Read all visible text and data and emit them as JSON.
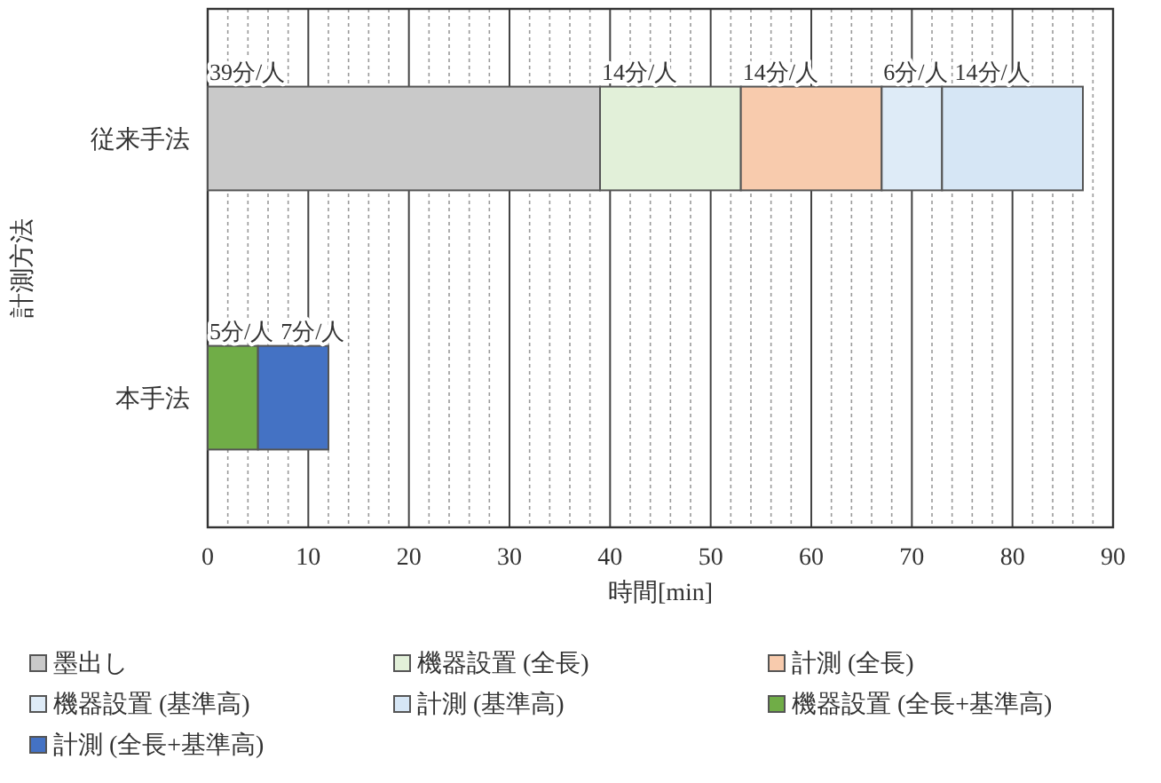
{
  "chart_data": {
    "type": "bar",
    "orientation": "horizontal",
    "stacked": true,
    "categories": [
      "従来手法",
      "本手法"
    ],
    "series": [
      {
        "name": "墨出し",
        "color": "#c9c9c9",
        "values": [
          39,
          null
        ],
        "value_labels": [
          "39分/人",
          null
        ]
      },
      {
        "name": "機器設置 (全長)",
        "color": "#e2f0d9",
        "values": [
          14,
          null
        ],
        "value_labels": [
          "14分/人",
          null
        ]
      },
      {
        "name": "計測 (全長)",
        "color": "#f8cbad",
        "values": [
          14,
          null
        ],
        "value_labels": [
          "14分/人",
          null
        ]
      },
      {
        "name": "機器設置 (基準高)",
        "color": "#deebf7",
        "values": [
          6,
          null
        ],
        "value_labels": [
          "6分/人",
          null
        ]
      },
      {
        "name": "計測 (基準高)",
        "color": "#d6e6f5",
        "values": [
          14,
          null
        ],
        "value_labels": [
          "14分/人",
          null
        ]
      },
      {
        "name": "機器設置 (全長+基準高)",
        "color": "#70ad47",
        "values": [
          null,
          5
        ],
        "value_labels": [
          null,
          "5分/人"
        ]
      },
      {
        "name": "計測 (全長+基準高)",
        "color": "#4472c4",
        "values": [
          null,
          7
        ],
        "value_labels": [
          null,
          "7分/人"
        ]
      }
    ],
    "xlabel": "時間[min]",
    "ylabel": "計測方法",
    "xlim": [
      0,
      90
    ],
    "xticks": [
      0,
      {
        "value": 2,
        "label": null
      },
      {
        "value": 4,
        "label": null
      },
      {
        "value": 6,
        "label": null
      },
      {
        "value": 8,
        "label": null
      },
      10,
      {
        "value": 12,
        "label": null
      },
      {
        "value": 14,
        "label": null
      },
      {
        "value": 16,
        "label": null
      },
      {
        "value": 18,
        "label": null
      },
      20,
      {
        "value": 22,
        "label": null
      },
      {
        "value": 24,
        "label": null
      },
      {
        "value": 26,
        "label": null
      },
      {
        "value": 28,
        "label": null
      },
      30,
      {
        "value": 32,
        "label": null
      },
      {
        "value": 34,
        "label": null
      },
      {
        "value": 36,
        "label": null
      },
      {
        "value": 38,
        "label": null
      },
      40,
      {
        "value": 42,
        "label": null
      },
      {
        "value": 44,
        "label": null
      },
      {
        "value": 46,
        "label": null
      },
      {
        "value": 48,
        "label": null
      },
      50,
      {
        "value": 52,
        "label": null
      },
      {
        "value": 54,
        "label": null
      },
      {
        "value": 56,
        "label": null
      },
      {
        "value": 58,
        "label": null
      },
      60,
      {
        "value": 62,
        "label": null
      },
      {
        "value": 64,
        "label": null
      },
      {
        "value": 66,
        "label": null
      },
      {
        "value": 68,
        "label": null
      },
      70,
      {
        "value": 72,
        "label": null
      },
      {
        "value": 74,
        "label": null
      },
      {
        "value": 76,
        "label": null
      },
      {
        "value": 78,
        "label": null
      },
      80,
      {
        "value": 82,
        "label": null
      },
      {
        "value": 84,
        "label": null
      },
      {
        "value": 86,
        "label": null
      },
      {
        "value": 88,
        "label": null
      },
      90
    ],
    "grid": "x",
    "legend": "bottom"
  }
}
